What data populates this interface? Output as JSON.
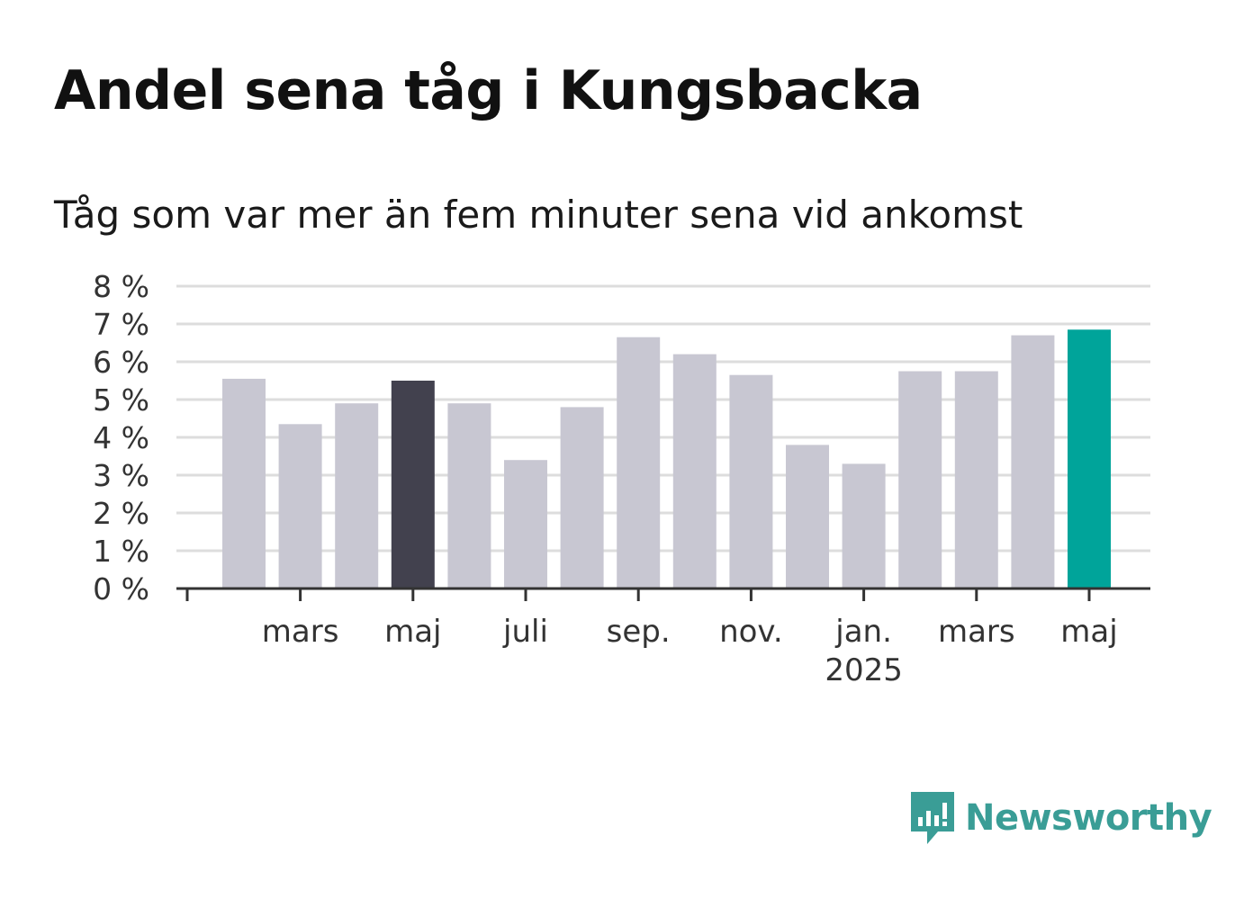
{
  "title": "Andel sena tåg i Kungsbacka",
  "subtitle": "Tåg som var mer än fem minuter sena vid ankomst",
  "brand": "Newsworthy",
  "colors": {
    "bar_default": "#c8c7d2",
    "bar_highlight": "#42414e",
    "bar_latest": "#00a49a",
    "brand": "#3a9d96",
    "grid": "#dddddd",
    "axis": "#333333"
  },
  "chart_data": {
    "type": "bar",
    "ylim": [
      0,
      8
    ],
    "y_ticks": [
      "0 %",
      "1 %",
      "2 %",
      "3 %",
      "4 %",
      "5 %",
      "6 %",
      "7 %",
      "8 %"
    ],
    "grid": true,
    "series": [
      {
        "values": [
          5.55,
          4.35,
          4.9,
          5.5,
          4.9,
          3.4,
          4.8,
          6.65,
          6.2,
          5.65,
          3.8,
          3.3,
          5.75,
          5.75,
          6.7,
          6.85
        ]
      }
    ],
    "highlight_index": 3,
    "latest_index": 15,
    "x_labels": [
      {
        "bar_index": 1,
        "label": "mars",
        "sublabel": ""
      },
      {
        "bar_index": 3,
        "label": "maj",
        "sublabel": ""
      },
      {
        "bar_index": 5,
        "label": "juli",
        "sublabel": ""
      },
      {
        "bar_index": 7,
        "label": "sep.",
        "sublabel": ""
      },
      {
        "bar_index": 9,
        "label": "nov.",
        "sublabel": ""
      },
      {
        "bar_index": 11,
        "label": "jan.",
        "sublabel": "2025"
      },
      {
        "bar_index": 13,
        "label": "mars",
        "sublabel": ""
      },
      {
        "bar_index": 15,
        "label": "maj",
        "sublabel": ""
      }
    ]
  }
}
